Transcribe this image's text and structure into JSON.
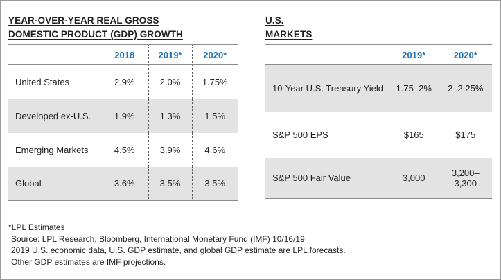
{
  "gdp": {
    "title_line1": "YEAR-OVER-YEAR REAL GROSS",
    "title_line2": "DOMESTIC PRODUCT (GDP) GROWTH",
    "headers": [
      "",
      "2018",
      "2019*",
      "2020*"
    ],
    "rows": [
      {
        "label": "United States",
        "v2018": "2.9%",
        "v2019": "2.0%",
        "v2020": "1.75%"
      },
      {
        "label": "Developed ex-U.S.",
        "v2018": "1.9%",
        "v2019": "1.3%",
        "v2020": "1.5%"
      },
      {
        "label": "Emerging Markets",
        "v2018": "4.5%",
        "v2019": "3.9%",
        "v2020": "4.6%"
      },
      {
        "label": "Global",
        "v2018": "3.6%",
        "v2019": "3.5%",
        "v2020": "3.5%"
      }
    ]
  },
  "markets": {
    "title_line1": "U.S.",
    "title_line2": "MARKETS",
    "headers": [
      "",
      "2019*",
      "2020*"
    ],
    "rows": [
      {
        "label": "10-Year U.S. Treasury Yield",
        "v2019": "1.75–2%",
        "v2020": "2–2.25%"
      },
      {
        "label": "S&P 500 EPS",
        "v2019": "$165",
        "v2020": "$175"
      },
      {
        "label": "S&P 500 Fair Value",
        "v2019": "3,000",
        "v2020_line1": "3,200–",
        "v2020_line2": "3,300"
      }
    ]
  },
  "notes": {
    "estimates": "*LPL Estimates",
    "source": "Source: LPL Research, Bloomberg, International Monetary Fund (IMF) 10/16/19",
    "line2": "2019 U.S. economic data, U.S. GDP estimate, and global GDP estimate are LPL forecasts.",
    "line3": "Other GDP estimates are IMF projections."
  }
}
